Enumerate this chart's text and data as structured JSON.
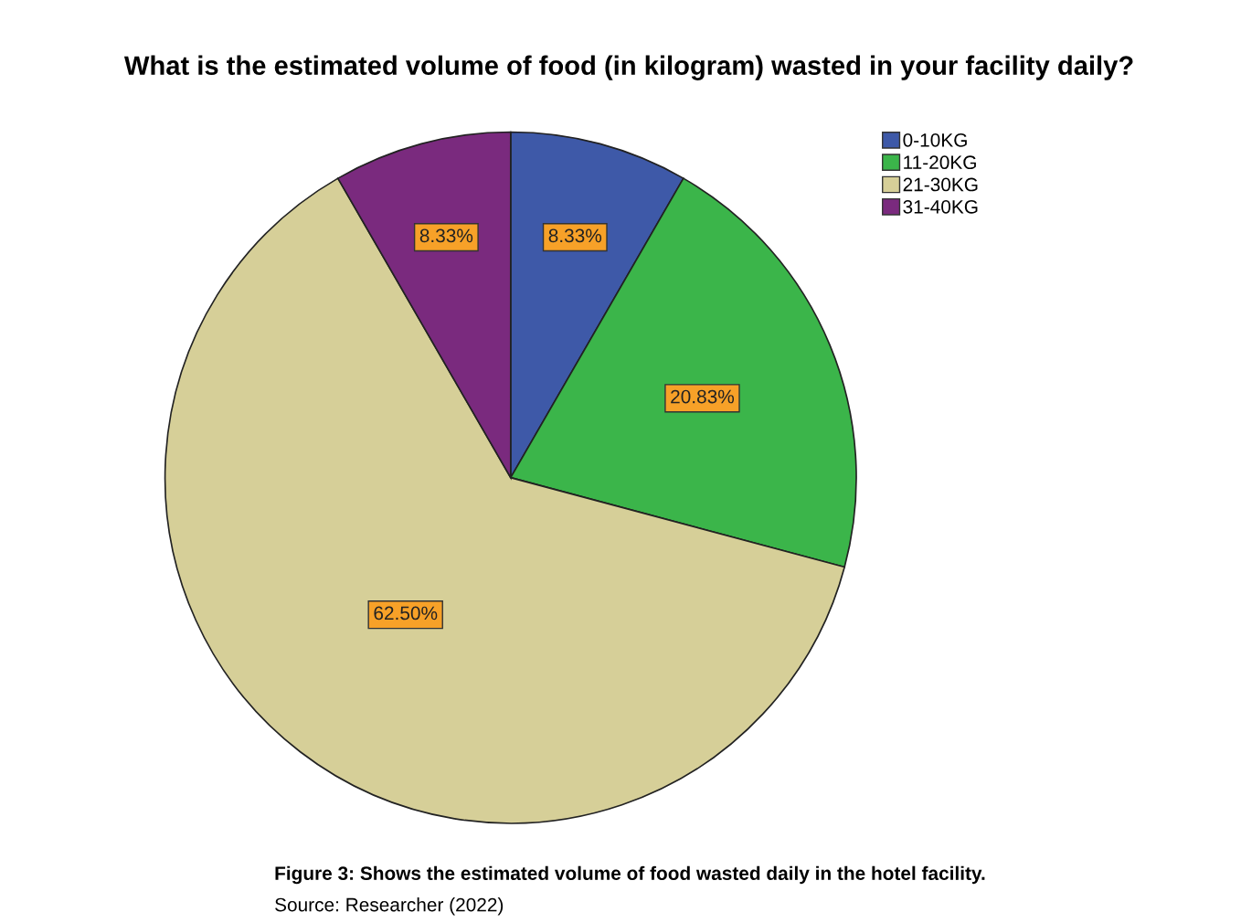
{
  "chart_data": {
    "type": "pie",
    "title": "What is the estimated volume of food (in kilogram) wasted in your facility daily?",
    "categories": [
      "0-10KG",
      "11-20KG",
      "21-30KG",
      "31-40KG"
    ],
    "values": [
      8.33,
      20.83,
      62.5,
      8.33
    ],
    "value_labels": [
      "8.33%",
      "20.83%",
      "62.50%",
      "8.33%"
    ],
    "colors": [
      "#3e59a8",
      "#3bb54a",
      "#d6cf98",
      "#7a2a7e"
    ],
    "legend": "top right",
    "annotations": [
      "Figure 3: Shows the estimated volume of food wasted daily in the hotel facility.",
      "Source: Researcher (2022)"
    ]
  }
}
